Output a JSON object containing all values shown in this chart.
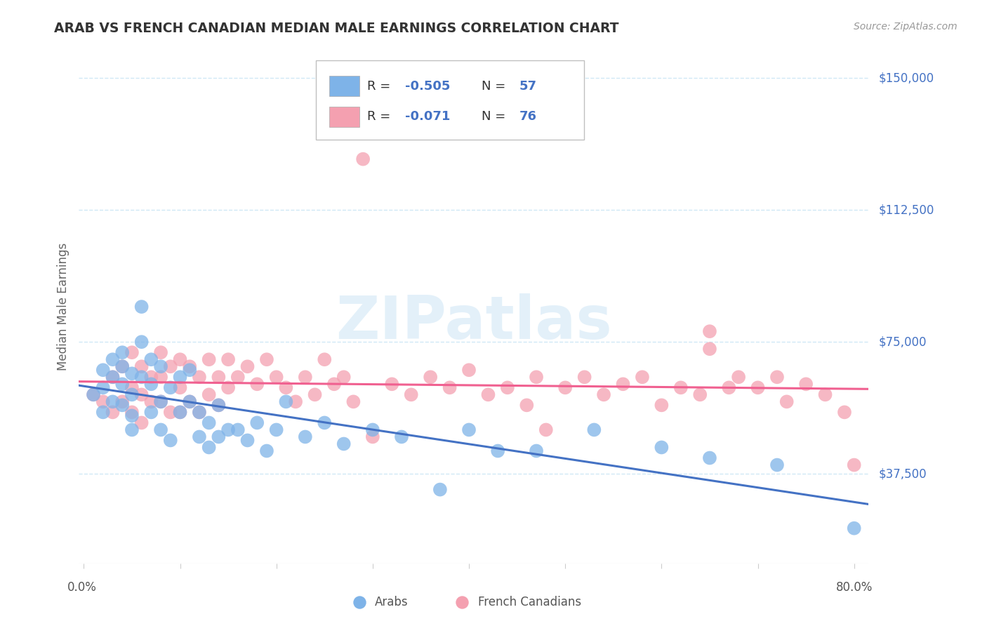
{
  "title": "ARAB VS FRENCH CANADIAN MEDIAN MALE EARNINGS CORRELATION CHART",
  "source": "Source: ZipAtlas.com",
  "ylabel": "Median Male Earnings",
  "ytick_labels": [
    "$37,500",
    "$75,000",
    "$112,500",
    "$150,000"
  ],
  "ytick_values": [
    37500,
    75000,
    112500,
    150000
  ],
  "ymin": 12000,
  "ymax": 158000,
  "xmin": -0.005,
  "xmax": 0.815,
  "arab_color": "#7eb3e8",
  "fc_color": "#f4a0b0",
  "arab_line_color": "#4472c4",
  "fc_line_color": "#f06090",
  "watermark": "ZIPatlas",
  "background_color": "#ffffff",
  "grid_color": "#d0e8f5",
  "title_color": "#333333",
  "axis_label_color": "#666666",
  "ytick_color": "#4472c4",
  "xtick_color": "#555555",
  "legend_R_color": "#4472c4",
  "legend_N_color": "#4472c4"
}
